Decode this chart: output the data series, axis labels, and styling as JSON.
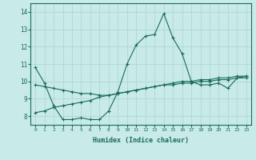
{
  "xlabel": "Humidex (Indice chaleur)",
  "background_color": "#c8eae8",
  "grid_color": "#b0d8d4",
  "line_color": "#1a6b5a",
  "xlim": [
    -0.5,
    23.5
  ],
  "ylim": [
    7.5,
    14.5
  ],
  "yticks": [
    8,
    9,
    10,
    11,
    12,
    13,
    14
  ],
  "xticks": [
    0,
    1,
    2,
    3,
    4,
    5,
    6,
    7,
    8,
    9,
    10,
    11,
    12,
    13,
    14,
    15,
    16,
    17,
    18,
    19,
    20,
    21,
    22,
    23
  ],
  "series1_x": [
    0,
    1,
    2,
    3,
    4,
    5,
    6,
    7,
    8,
    9,
    10,
    11,
    12,
    13,
    14,
    15,
    16,
    17,
    18,
    19,
    20,
    21,
    22,
    23
  ],
  "series1_y": [
    10.8,
    9.9,
    8.6,
    7.8,
    7.8,
    7.9,
    7.8,
    7.8,
    8.3,
    9.4,
    11.0,
    12.1,
    12.6,
    12.7,
    13.9,
    12.5,
    11.6,
    10.0,
    9.8,
    9.8,
    9.9,
    9.6,
    10.2,
    10.3
  ],
  "series2_x": [
    0,
    1,
    2,
    3,
    4,
    5,
    6,
    7,
    8,
    9,
    10,
    11,
    12,
    13,
    14,
    15,
    16,
    17,
    18,
    19,
    20,
    21,
    22,
    23
  ],
  "series2_y": [
    8.2,
    8.3,
    8.5,
    8.6,
    8.7,
    8.8,
    8.9,
    9.1,
    9.2,
    9.3,
    9.4,
    9.5,
    9.6,
    9.7,
    9.8,
    9.9,
    10.0,
    10.0,
    10.1,
    10.1,
    10.2,
    10.2,
    10.3,
    10.3
  ],
  "series3_x": [
    0,
    1,
    2,
    3,
    4,
    5,
    6,
    7,
    8,
    9,
    10,
    11,
    12,
    13,
    14,
    15,
    16,
    17,
    18,
    19,
    20,
    21,
    22,
    23
  ],
  "series3_y": [
    9.8,
    9.7,
    9.6,
    9.5,
    9.4,
    9.3,
    9.3,
    9.2,
    9.2,
    9.3,
    9.4,
    9.5,
    9.6,
    9.7,
    9.8,
    9.8,
    9.9,
    9.9,
    10.0,
    10.0,
    10.1,
    10.1,
    10.2,
    10.2
  ]
}
